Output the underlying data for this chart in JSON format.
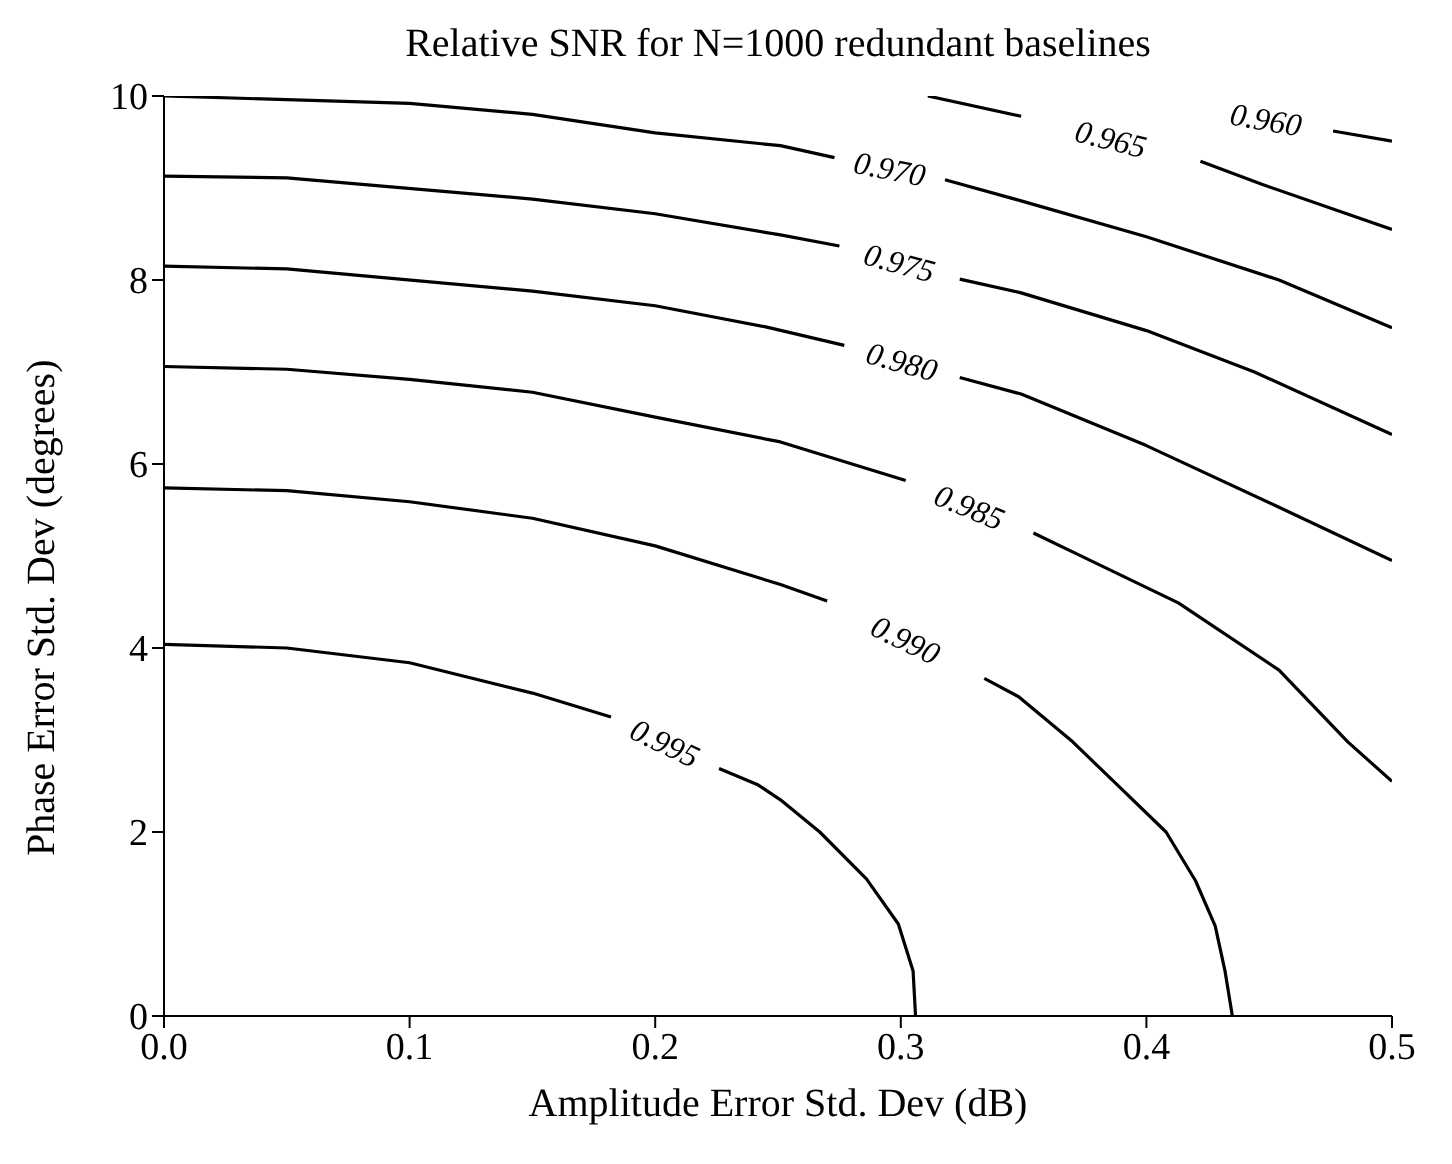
{
  "chart_data": {
    "type": "line",
    "title": "Relative SNR for N=1000 redundant baselines",
    "xlabel": "Amplitude Error Std. Dev (dB)",
    "ylabel": "Phase Error Std. Dev (degrees)",
    "xlim": [
      0,
      0.5
    ],
    "xticks": [
      {
        "value": 0,
        "label": "0.0"
      },
      0.1,
      0.2,
      0.3,
      0.4,
      0.5
    ],
    "ylim": [
      0,
      10
    ],
    "yticks": [
      0,
      2,
      4,
      6,
      8,
      10
    ],
    "grid": false,
    "legend": false,
    "marker": "none",
    "line_style": "solid",
    "series": [
      {
        "name": "0.960",
        "color": "#000000",
        "x": [
          0.476,
          0.5
        ],
        "values": [
          9.62,
          9.51
        ]
      },
      {
        "name": "0.965",
        "color": "#000000",
        "x": [
          0.311,
          0.349,
          0.385,
          0.422,
          0.447,
          0.5
        ],
        "values": [
          10,
          9.78,
          null,
          9.29,
          9.04,
          8.55
        ]
      },
      {
        "name": "0.970",
        "color": "#000000",
        "x": [
          0,
          0.1,
          0.15,
          0.2,
          0.251,
          0.273,
          0.3,
          0.318,
          0.349,
          0.4,
          0.454,
          0.5
        ],
        "values": [
          10,
          9.92,
          9.8,
          9.6,
          9.46,
          9.33,
          null,
          9.09,
          8.86,
          8.47,
          8.0,
          7.48
        ]
      },
      {
        "name": "0.975",
        "color": "#000000",
        "x": [
          0,
          0.05,
          0.15,
          0.2,
          0.251,
          0.275,
          0.3,
          0.324,
          0.349,
          0.4,
          0.444,
          0.5
        ],
        "values": [
          9.13,
          9.11,
          8.88,
          8.72,
          8.49,
          8.37,
          null,
          8.01,
          7.86,
          7.45,
          7.0,
          6.32
        ]
      },
      {
        "name": "0.980",
        "color": "#000000",
        "x": [
          0,
          0.05,
          0.15,
          0.2,
          0.245,
          0.277,
          0.3,
          0.324,
          0.349,
          0.4,
          0.454,
          0.5
        ],
        "values": [
          8.15,
          8.12,
          7.88,
          7.72,
          7.49,
          7.29,
          null,
          6.94,
          6.76,
          6.2,
          5.53,
          4.95
        ]
      },
      {
        "name": "0.985",
        "color": "#000000",
        "x": [
          0,
          0.05,
          0.1,
          0.15,
          0.2,
          0.251,
          0.302,
          0.33,
          0.354,
          0.375,
          0.413,
          0.454,
          0.482,
          0.5
        ],
        "values": [
          7.06,
          7.03,
          6.92,
          6.78,
          6.51,
          6.24,
          5.82,
          null,
          5.25,
          4.98,
          4.49,
          3.76,
          2.98,
          2.55
        ]
      },
      {
        "name": "0.990",
        "color": "#000000",
        "x": [
          0,
          0.05,
          0.1,
          0.15,
          0.2,
          0.251,
          0.27,
          0.3,
          0.334,
          0.348,
          0.37,
          0.389,
          0.408,
          0.42,
          0.428,
          0.432,
          0.435
        ],
        "values": [
          5.74,
          5.71,
          5.59,
          5.41,
          5.11,
          4.69,
          4.51,
          null,
          3.67,
          3.47,
          2.98,
          2.49,
          2.0,
          1.47,
          0.98,
          0.49,
          0
        ]
      },
      {
        "name": "0.995",
        "color": "#000000",
        "x": [
          0,
          0.05,
          0.1,
          0.15,
          0.182,
          0.2,
          0.226,
          0.242,
          0.251,
          0.267,
          0.286,
          0.299,
          0.305,
          0.306
        ],
        "values": [
          4.04,
          4.0,
          3.84,
          3.51,
          3.25,
          null,
          2.69,
          2.51,
          2.35,
          2.0,
          1.49,
          1.0,
          0.49,
          0
        ]
      }
    ]
  }
}
